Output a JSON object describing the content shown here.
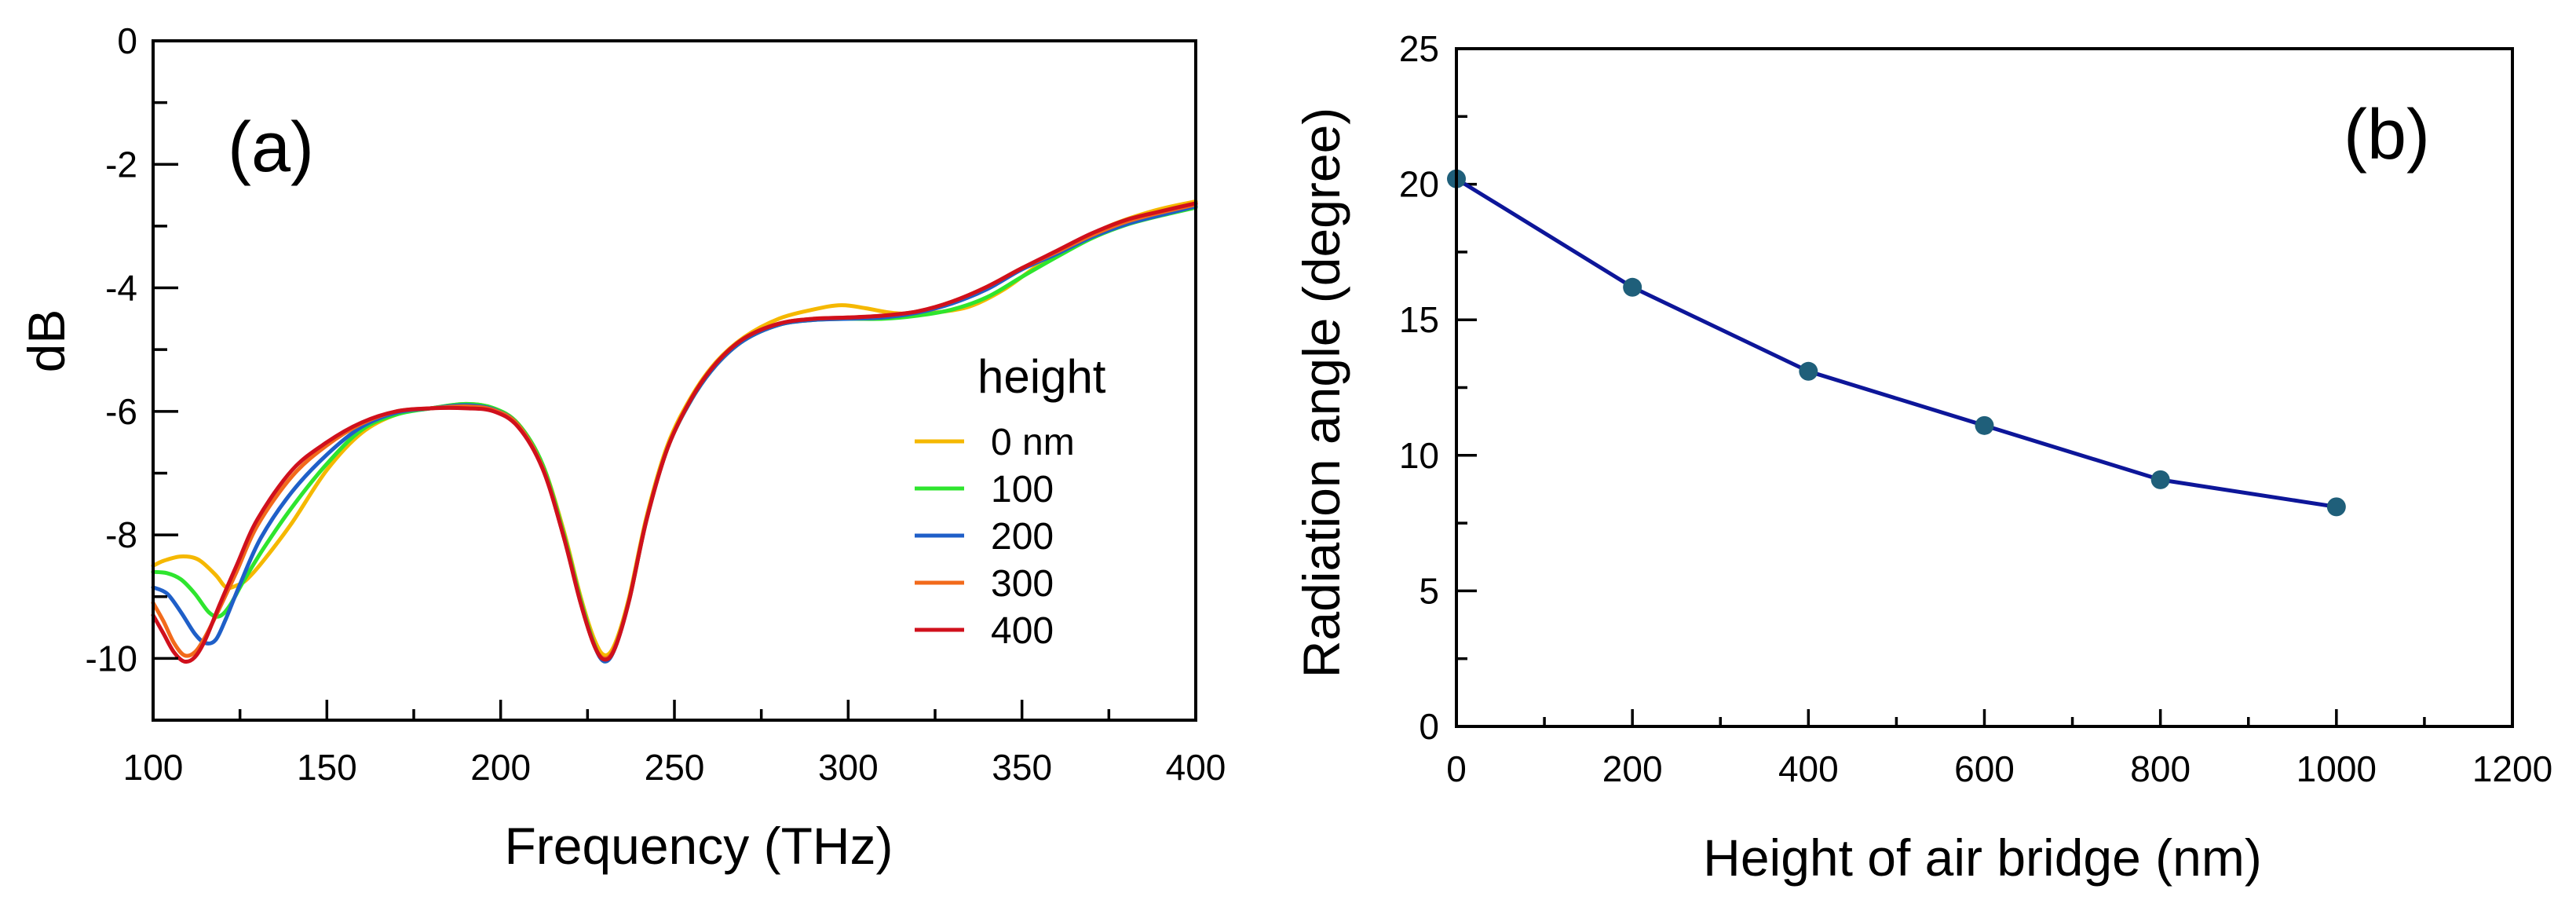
{
  "chart_data": [
    {
      "type": "line",
      "panel_label": "(a)",
      "xlabel": "Frequency  (THz)",
      "ylabel": "dB",
      "xlim": [
        100,
        400
      ],
      "ylim": [
        -11,
        0
      ],
      "x_ticks": [
        100,
        150,
        200,
        250,
        300,
        350,
        400
      ],
      "y_ticks": [
        0,
        -2,
        -4,
        -6,
        -8,
        -10
      ],
      "legend_title": "height",
      "legend_position": "right",
      "grid": false,
      "series": [
        {
          "name": "0 nm",
          "color": "#f5b800",
          "points": [
            [
              100,
              -8.5
            ],
            [
              103,
              -8.42
            ],
            [
              108,
              -8.35
            ],
            [
              113,
              -8.4
            ],
            [
              118,
              -8.65
            ],
            [
              121,
              -8.85
            ],
            [
              124,
              -8.82
            ],
            [
              127,
              -8.72
            ],
            [
              132,
              -8.4
            ],
            [
              140,
              -7.8
            ],
            [
              150,
              -6.95
            ],
            [
              160,
              -6.35
            ],
            [
              170,
              -6.05
            ],
            [
              180,
              -5.95
            ],
            [
              190,
              -5.88
            ],
            [
              198,
              -5.95
            ],
            [
              205,
              -6.2
            ],
            [
              212,
              -6.85
            ],
            [
              218,
              -7.9
            ],
            [
              223,
              -9.0
            ],
            [
              227,
              -9.7
            ],
            [
              230,
              -9.95
            ],
            [
              233,
              -9.75
            ],
            [
              237,
              -9.0
            ],
            [
              242,
              -7.7
            ],
            [
              248,
              -6.55
            ],
            [
              255,
              -5.75
            ],
            [
              262,
              -5.2
            ],
            [
              270,
              -4.8
            ],
            [
              280,
              -4.5
            ],
            [
              290,
              -4.35
            ],
            [
              298,
              -4.28
            ],
            [
              305,
              -4.33
            ],
            [
              312,
              -4.4
            ],
            [
              318,
              -4.42
            ],
            [
              325,
              -4.4
            ],
            [
              335,
              -4.3
            ],
            [
              345,
              -4.02
            ],
            [
              355,
              -3.62
            ],
            [
              365,
              -3.3
            ],
            [
              375,
              -3.0
            ],
            [
              388,
              -2.75
            ],
            [
              400,
              -2.6
            ]
          ]
        },
        {
          "name": "100",
          "color": "#2ee52e",
          "points": [
            [
              100,
              -8.6
            ],
            [
              104,
              -8.62
            ],
            [
              108,
              -8.72
            ],
            [
              112,
              -8.95
            ],
            [
              116,
              -9.25
            ],
            [
              119,
              -9.32
            ],
            [
              122,
              -9.15
            ],
            [
              126,
              -8.75
            ],
            [
              132,
              -8.2
            ],
            [
              140,
              -7.55
            ],
            [
              150,
              -6.85
            ],
            [
              160,
              -6.3
            ],
            [
              170,
              -6.05
            ],
            [
              180,
              -5.95
            ],
            [
              190,
              -5.88
            ],
            [
              198,
              -5.95
            ],
            [
              205,
              -6.2
            ],
            [
              212,
              -6.85
            ],
            [
              218,
              -7.95
            ],
            [
              223,
              -9.05
            ],
            [
              227,
              -9.78
            ],
            [
              230,
              -10.05
            ],
            [
              233,
              -9.8
            ],
            [
              237,
              -9.05
            ],
            [
              242,
              -7.75
            ],
            [
              248,
              -6.6
            ],
            [
              255,
              -5.8
            ],
            [
              262,
              -5.25
            ],
            [
              270,
              -4.85
            ],
            [
              280,
              -4.6
            ],
            [
              290,
              -4.52
            ],
            [
              300,
              -4.5
            ],
            [
              310,
              -4.5
            ],
            [
              320,
              -4.45
            ],
            [
              330,
              -4.35
            ],
            [
              340,
              -4.15
            ],
            [
              350,
              -3.82
            ],
            [
              360,
              -3.5
            ],
            [
              370,
              -3.2
            ],
            [
              380,
              -2.98
            ],
            [
              390,
              -2.83
            ],
            [
              400,
              -2.7
            ]
          ]
        },
        {
          "name": "200",
          "color": "#1f5fc8",
          "points": [
            [
              100,
              -8.85
            ],
            [
              104,
              -8.95
            ],
            [
              108,
              -9.25
            ],
            [
              112,
              -9.6
            ],
            [
              115,
              -9.75
            ],
            [
              118,
              -9.7
            ],
            [
              121,
              -9.35
            ],
            [
              125,
              -8.8
            ],
            [
              131,
              -8.05
            ],
            [
              140,
              -7.3
            ],
            [
              150,
              -6.7
            ],
            [
              160,
              -6.25
            ],
            [
              170,
              -6.02
            ],
            [
              180,
              -5.95
            ],
            [
              190,
              -5.9
            ],
            [
              198,
              -5.97
            ],
            [
              205,
              -6.22
            ],
            [
              212,
              -6.9
            ],
            [
              218,
              -8.0
            ],
            [
              223,
              -9.1
            ],
            [
              227,
              -9.8
            ],
            [
              230,
              -10.05
            ],
            [
              233,
              -9.82
            ],
            [
              237,
              -9.05
            ],
            [
              242,
              -7.75
            ],
            [
              248,
              -6.6
            ],
            [
              255,
              -5.8
            ],
            [
              262,
              -5.25
            ],
            [
              270,
              -4.85
            ],
            [
              280,
              -4.6
            ],
            [
              290,
              -4.52
            ],
            [
              300,
              -4.5
            ],
            [
              310,
              -4.48
            ],
            [
              320,
              -4.4
            ],
            [
              330,
              -4.25
            ],
            [
              340,
              -4.02
            ],
            [
              350,
              -3.7
            ],
            [
              360,
              -3.45
            ],
            [
              370,
              -3.18
            ],
            [
              380,
              -2.97
            ],
            [
              390,
              -2.82
            ],
            [
              400,
              -2.68
            ]
          ]
        },
        {
          "name": "300",
          "color": "#f26a1b",
          "points": [
            [
              100,
              -9.1
            ],
            [
              103,
              -9.4
            ],
            [
              106,
              -9.75
            ],
            [
              109,
              -9.95
            ],
            [
              112,
              -9.9
            ],
            [
              115,
              -9.65
            ],
            [
              119,
              -9.2
            ],
            [
              124,
              -8.6
            ],
            [
              130,
              -7.85
            ],
            [
              140,
              -7.05
            ],
            [
              150,
              -6.55
            ],
            [
              160,
              -6.2
            ],
            [
              170,
              -6.0
            ],
            [
              180,
              -5.95
            ],
            [
              190,
              -5.92
            ],
            [
              198,
              -5.98
            ],
            [
              205,
              -6.22
            ],
            [
              212,
              -6.9
            ],
            [
              218,
              -8.0
            ],
            [
              223,
              -9.1
            ],
            [
              227,
              -9.8
            ],
            [
              230,
              -10.0
            ],
            [
              233,
              -9.8
            ],
            [
              237,
              -9.05
            ],
            [
              242,
              -7.75
            ],
            [
              248,
              -6.6
            ],
            [
              255,
              -5.78
            ],
            [
              262,
              -5.22
            ],
            [
              270,
              -4.82
            ],
            [
              280,
              -4.58
            ],
            [
              290,
              -4.5
            ],
            [
              300,
              -4.48
            ],
            [
              310,
              -4.45
            ],
            [
              320,
              -4.38
            ],
            [
              330,
              -4.22
            ],
            [
              340,
              -3.98
            ],
            [
              350,
              -3.68
            ],
            [
              360,
              -3.42
            ],
            [
              370,
              -3.15
            ],
            [
              380,
              -2.93
            ],
            [
              390,
              -2.78
            ],
            [
              400,
              -2.65
            ]
          ]
        },
        {
          "name": "400",
          "color": "#d0101c",
          "points": [
            [
              100,
              -9.3
            ],
            [
              103,
              -9.6
            ],
            [
              106,
              -9.9
            ],
            [
              109,
              -10.05
            ],
            [
              112,
              -9.98
            ],
            [
              115,
              -9.7
            ],
            [
              119,
              -9.15
            ],
            [
              124,
              -8.5
            ],
            [
              130,
              -7.75
            ],
            [
              140,
              -6.95
            ],
            [
              150,
              -6.5
            ],
            [
              160,
              -6.18
            ],
            [
              170,
              -6.0
            ],
            [
              180,
              -5.95
            ],
            [
              190,
              -5.95
            ],
            [
              198,
              -6.0
            ],
            [
              205,
              -6.25
            ],
            [
              212,
              -6.92
            ],
            [
              218,
              -8.0
            ],
            [
              223,
              -9.1
            ],
            [
              227,
              -9.8
            ],
            [
              230,
              -10.02
            ],
            [
              233,
              -9.82
            ],
            [
              237,
              -9.05
            ],
            [
              242,
              -7.75
            ],
            [
              248,
              -6.6
            ],
            [
              255,
              -5.78
            ],
            [
              262,
              -5.22
            ],
            [
              270,
              -4.82
            ],
            [
              280,
              -4.58
            ],
            [
              290,
              -4.5
            ],
            [
              300,
              -4.48
            ],
            [
              310,
              -4.45
            ],
            [
              320,
              -4.38
            ],
            [
              330,
              -4.22
            ],
            [
              340,
              -3.98
            ],
            [
              350,
              -3.68
            ],
            [
              360,
              -3.4
            ],
            [
              370,
              -3.12
            ],
            [
              380,
              -2.9
            ],
            [
              390,
              -2.76
            ],
            [
              400,
              -2.63
            ]
          ]
        }
      ]
    },
    {
      "type": "line",
      "panel_label": "(b)",
      "xlabel": "Height of air bridge (nm)",
      "ylabel": "Radiation angle (degree)",
      "xlim": [
        0,
        1200
      ],
      "ylim": [
        0,
        25
      ],
      "x_ticks": [
        0,
        200,
        400,
        600,
        800,
        1000,
        1200
      ],
      "y_ticks": [
        0,
        5,
        10,
        15,
        20,
        25
      ],
      "grid": false,
      "series": [
        {
          "name": "Radiation angle",
          "line_color": "#0d1699",
          "marker_color": "#1f5f7a",
          "x": [
            0,
            200,
            400,
            600,
            800,
            1000
          ],
          "y": [
            20.2,
            16.2,
            13.1,
            11.1,
            9.1,
            8.1
          ]
        }
      ]
    }
  ]
}
